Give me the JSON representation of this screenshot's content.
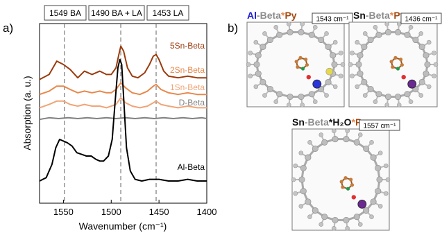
{
  "figure": {
    "panel_a_label": "a)",
    "panel_b_label": "b)"
  },
  "chart_data": {
    "type": "line",
    "xlabel": "Wavenumber (cm⁻¹)",
    "ylabel": "Absorption (a. u.)",
    "xlim": [
      1575,
      1400
    ],
    "x_ticks": [
      1550,
      1500,
      1450,
      1400
    ],
    "x_ticks_labels": [
      "1550",
      "1500",
      "1450",
      "1400"
    ],
    "grid": false,
    "legend": "none",
    "annotations": [
      {
        "x": 1549,
        "label": "1549 BA"
      },
      {
        "x": 1490,
        "label": "1490 BA + LA"
      },
      {
        "x": 1453,
        "label": "1453 LA"
      }
    ],
    "series": [
      {
        "name": "5Sn-Beta",
        "color": "#9b3a0c",
        "x": [
          1575,
          1565,
          1557,
          1550,
          1543,
          1535,
          1528,
          1520,
          1512,
          1505,
          1500,
          1495,
          1492,
          1490,
          1487,
          1483,
          1478,
          1472,
          1465,
          1460,
          1456,
          1453,
          1450,
          1445,
          1440,
          1430,
          1420,
          1410,
          1400
        ],
        "y": [
          0.71,
          0.74,
          0.82,
          0.8,
          0.77,
          0.72,
          0.76,
          0.74,
          0.76,
          0.74,
          0.74,
          0.78,
          0.86,
          0.91,
          0.88,
          0.78,
          0.73,
          0.72,
          0.75,
          0.8,
          0.85,
          0.86,
          0.83,
          0.76,
          0.73,
          0.72,
          0.73,
          0.72,
          0.72
        ]
      },
      {
        "name": "2Sn-Beta",
        "color": "#e8874a",
        "x": [
          1575,
          1565,
          1557,
          1550,
          1543,
          1535,
          1528,
          1520,
          1512,
          1505,
          1500,
          1495,
          1490,
          1485,
          1478,
          1470,
          1462,
          1456,
          1453,
          1448,
          1440,
          1430,
          1420,
          1410,
          1400
        ],
        "y": [
          0.62,
          0.64,
          0.67,
          0.67,
          0.65,
          0.63,
          0.64,
          0.63,
          0.64,
          0.63,
          0.63,
          0.65,
          0.69,
          0.66,
          0.63,
          0.62,
          0.64,
          0.67,
          0.68,
          0.65,
          0.63,
          0.62,
          0.63,
          0.62,
          0.62
        ]
      },
      {
        "name": "1Sn-Beta",
        "color": "#f0a477",
        "x": [
          1575,
          1565,
          1557,
          1550,
          1543,
          1535,
          1528,
          1520,
          1512,
          1505,
          1500,
          1495,
          1490,
          1485,
          1478,
          1470,
          1462,
          1456,
          1453,
          1448,
          1440,
          1430,
          1420,
          1410,
          1400
        ],
        "y": [
          0.54,
          0.56,
          0.58,
          0.58,
          0.56,
          0.55,
          0.56,
          0.55,
          0.55,
          0.54,
          0.55,
          0.56,
          0.6,
          0.57,
          0.55,
          0.54,
          0.55,
          0.57,
          0.58,
          0.56,
          0.55,
          0.54,
          0.55,
          0.54,
          0.54
        ]
      },
      {
        "name": "D-Beta",
        "color": "#808080",
        "x": [
          1575,
          1565,
          1555,
          1545,
          1535,
          1525,
          1515,
          1505,
          1495,
          1485,
          1475,
          1465,
          1455,
          1445,
          1435,
          1425,
          1415,
          1405,
          1400
        ],
        "y": [
          0.47,
          0.48,
          0.475,
          0.48,
          0.475,
          0.48,
          0.475,
          0.48,
          0.475,
          0.48,
          0.475,
          0.48,
          0.475,
          0.48,
          0.475,
          0.48,
          0.475,
          0.48,
          0.475
        ]
      },
      {
        "name": "Al-Beta",
        "color": "#000000",
        "x": [
          1575,
          1568,
          1562,
          1558,
          1554,
          1550,
          1546,
          1541,
          1536,
          1531,
          1526,
          1521,
          1516,
          1512,
          1508,
          1503,
          1499,
          1496,
          1493,
          1491,
          1489,
          1487,
          1484,
          1480,
          1475,
          1468,
          1460,
          1450,
          1440,
          1430,
          1420,
          1410,
          1400
        ],
        "y": [
          0.1,
          0.12,
          0.2,
          0.3,
          0.35,
          0.34,
          0.33,
          0.31,
          0.27,
          0.26,
          0.25,
          0.25,
          0.23,
          0.22,
          0.22,
          0.25,
          0.35,
          0.57,
          0.78,
          0.83,
          0.8,
          0.6,
          0.3,
          0.16,
          0.11,
          0.1,
          0.11,
          0.11,
          0.1,
          0.1,
          0.11,
          0.1,
          0.1
        ]
      }
    ]
  },
  "panels_b": [
    {
      "title_parts": [
        {
          "text": "Al",
          "color": "#1f1fd6"
        },
        {
          "text": "-Beta",
          "color": "#8c8c8c"
        },
        {
          "text": "*",
          "color": "#e8874a"
        },
        {
          "text": "Py",
          "color": "#a34a12"
        }
      ],
      "freq": "1543 cm⁻¹"
    },
    {
      "title_parts": [
        {
          "text": "Sn",
          "color": "#111111"
        },
        {
          "text": "-Beta",
          "color": "#8c8c8c"
        },
        {
          "text": "*",
          "color": "#e8874a"
        },
        {
          "text": "Py",
          "color": "#a34a12"
        }
      ],
      "freq": "1436 cm⁻¹"
    },
    {
      "title_parts": [
        {
          "text": "Sn",
          "color": "#111111"
        },
        {
          "text": "-Beta",
          "color": "#8c8c8c"
        },
        {
          "text": "*H₂O",
          "color": "#111111"
        },
        {
          "text": "*",
          "color": "#e8874a"
        },
        {
          "text": "Py",
          "color": "#a34a12"
        }
      ],
      "freq": "1557 cm⁻¹"
    }
  ]
}
